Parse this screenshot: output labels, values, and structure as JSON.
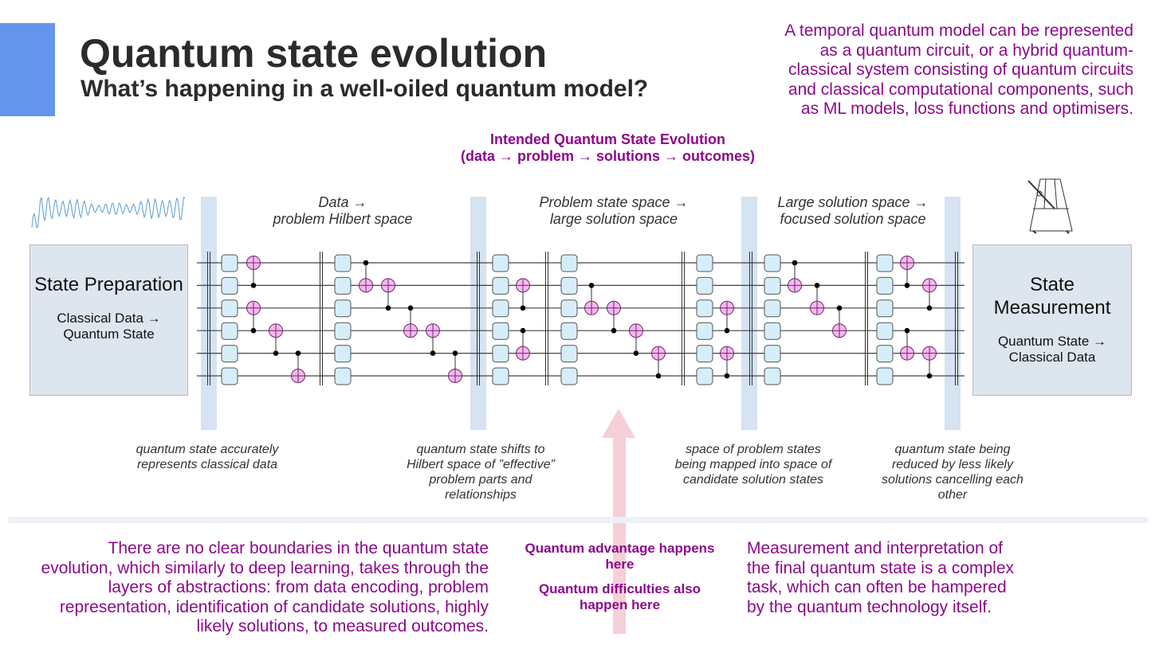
{
  "header": {
    "title": "Quantum state evolution",
    "subtitle": "What’s happening in a well-oiled quantum model?"
  },
  "top_note": "A temporal quantum model can be represented as a quantum circuit, or a hybrid quantum-classical system consisting of quantum circuits and classical computational components, such as ML models, loss functions and optimisers.",
  "intended": {
    "line1": "Intended Quantum State Evolution",
    "line2": "(data → problem → solutions → outcomes)"
  },
  "phases": [
    {
      "line1": "Data →",
      "line2": "problem Hilbert space"
    },
    {
      "line1": "Problem state space →",
      "line2": "large solution space"
    },
    {
      "line1": "Large solution space →",
      "line2": "focused solution space"
    }
  ],
  "state_preparation": {
    "title": "State Preparation",
    "subtitle": "Classical Data → Quantum State"
  },
  "state_measurement": {
    "title": "State Measurement",
    "subtitle": "Quantum State → Classical Data"
  },
  "captions": [
    "quantum state accurately represents classical data",
    "quantum state shifts to Hilbert space of ”effective” problem parts and relationships",
    "space of problem states being mapped into space of candidate solution states",
    "quantum state being reduced by less likely solutions cancelling each other"
  ],
  "bottom": {
    "left_note": "There are no clear boundaries in the quantum state evolution, which similarly to deep learning, takes through the layers of abstractions: from data encoding, problem representation, identification of candidate solutions, highly likely solutions, to measured outcomes.",
    "advantage": "Quantum advantage happens here",
    "difficulties": "Quantum difficulties also happen here",
    "right_note": "Measurement and interpretation of the final quantum state is a complex task, which can often be hampered by the quantum technology itself."
  },
  "icons": {
    "left": "waveform-icon",
    "right": "metronome-icon",
    "arrow": "up-arrow-icon"
  },
  "colors": {
    "accent": "#6495ed",
    "purple": "#8b0a8b",
    "band": "#d5e3f2",
    "gate_target": "#f7b6f0",
    "gate_box": "#d6eef9",
    "arrow": "#f6cfd8"
  }
}
